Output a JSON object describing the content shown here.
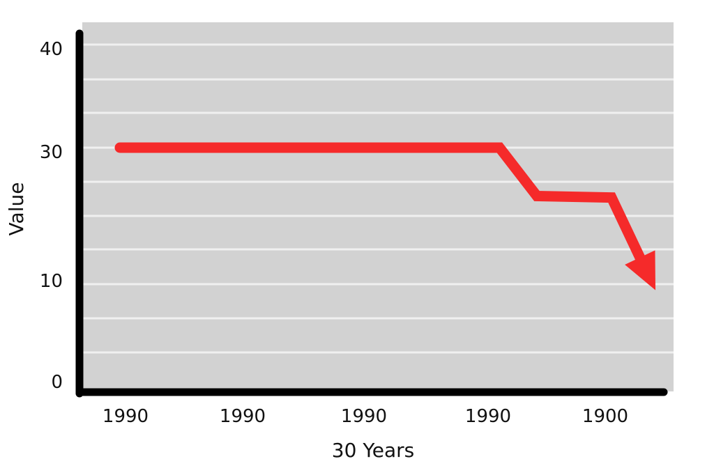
{
  "chart_data": {
    "type": "line",
    "title": "",
    "xlabel": "30 Years",
    "ylabel": "Value",
    "x_tick_labels": [
      "1990",
      "1990",
      "1990",
      "1990",
      "1900"
    ],
    "y_tick_labels": [
      "0",
      "10",
      "30",
      "40"
    ],
    "grid": true,
    "legend": "none",
    "series": [
      {
        "color": "#f52a2a",
        "line_style": "thick line ending in a downward arrowhead",
        "points": [
          {
            "x": 0.1,
            "y": 30
          },
          {
            "x": 3.15,
            "y": 30
          },
          {
            "x": 3.45,
            "y": 23.8
          },
          {
            "x": 4.05,
            "y": 23.6
          },
          {
            "x": 4.35,
            "y": 13.5
          }
        ]
      }
    ],
    "colors": {
      "plot_background": "#d2d2d2",
      "gridline": "#f0f0f0",
      "axis": "#000000",
      "series": "#f52a2a"
    }
  }
}
